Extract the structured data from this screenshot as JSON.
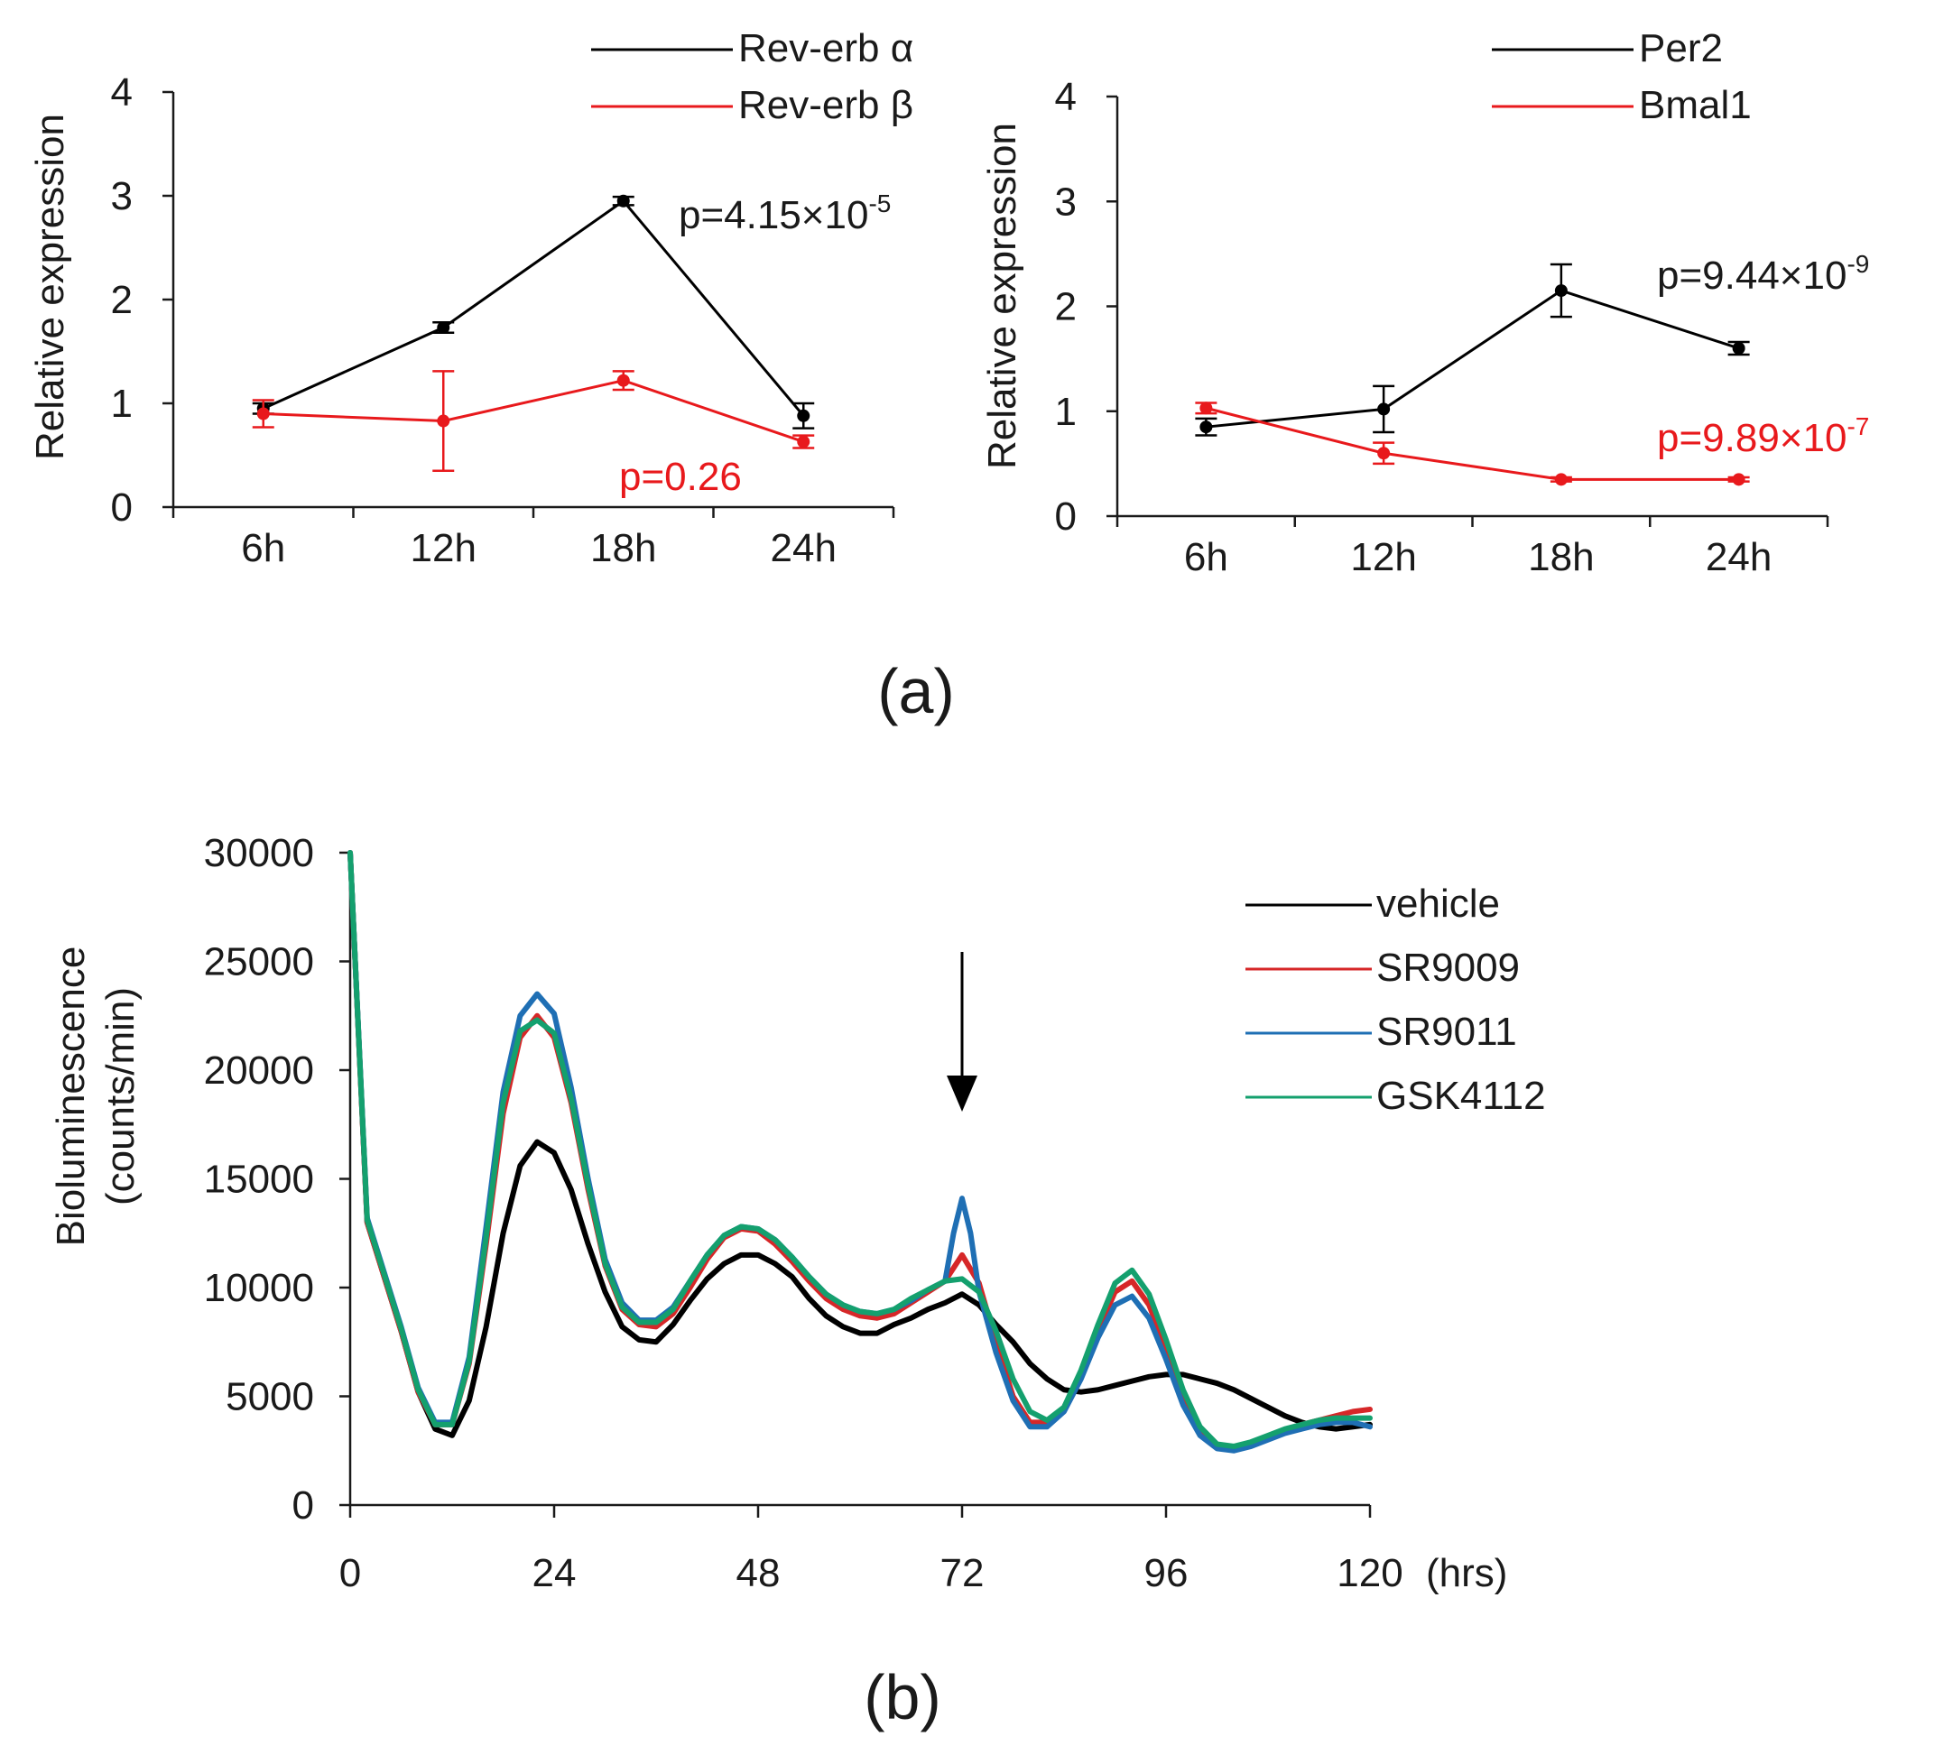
{
  "chart_data": [
    {
      "type": "line",
      "panel": "a-left",
      "title": "",
      "xlabel": "",
      "ylabel": "Relative expression",
      "categories": [
        "6h",
        "12h",
        "18h",
        "24h"
      ],
      "ylim": [
        0,
        4
      ],
      "yticks": [
        "0",
        "1",
        "2",
        "3",
        "4"
      ],
      "series": [
        {
          "name": "Rev-erb α",
          "color": "#000000",
          "values": [
            0.95,
            1.73,
            2.95,
            0.88
          ],
          "errors": [
            0.05,
            0.05,
            0.04,
            0.12
          ]
        },
        {
          "name": "Rev-erb β",
          "color": "#e8191c",
          "values": [
            0.9,
            0.83,
            1.22,
            0.63
          ],
          "errors": [
            0.13,
            0.48,
            0.09,
            0.06
          ]
        }
      ],
      "annotations": [
        {
          "text": "p=4.15×10-5",
          "base": "p=4.15×10",
          "sup": "-5",
          "color": "#000000"
        },
        {
          "text": "p=0.26",
          "color": "#e8191c"
        }
      ]
    },
    {
      "type": "line",
      "panel": "a-right",
      "title": "",
      "xlabel": "",
      "ylabel": "Relative expression",
      "categories": [
        "6h",
        "12h",
        "18h",
        "24h"
      ],
      "ylim": [
        0,
        4
      ],
      "yticks": [
        "0",
        "1",
        "2",
        "3",
        "4"
      ],
      "series": [
        {
          "name": "Per2",
          "color": "#000000",
          "values": [
            0.85,
            1.02,
            2.15,
            1.6
          ],
          "errors": [
            0.08,
            0.22,
            0.25,
            0.06
          ]
        },
        {
          "name": "Bmal1",
          "color": "#e8191c",
          "values": [
            1.03,
            0.6,
            0.35,
            0.35
          ],
          "errors": [
            0.05,
            0.1,
            0.02,
            0.02
          ]
        }
      ],
      "annotations": [
        {
          "text": "p=9.44×10-9",
          "base": "p=9.44×10",
          "sup": "-9",
          "color": "#000000"
        },
        {
          "text": "p=9.89×10-7",
          "base": "p=9.89×10",
          "sup": "-7",
          "color": "#e8191c"
        }
      ]
    },
    {
      "type": "line",
      "panel": "b",
      "title": "",
      "xlabel": "(hrs)",
      "ylabel": [
        "Bioluminescence",
        "(counts/min)"
      ],
      "xlim": [
        0,
        120
      ],
      "xticks": [
        "0",
        "24",
        "48",
        "72",
        "96",
        "120"
      ],
      "ylim": [
        0,
        30000
      ],
      "yticks": [
        "0",
        "5000",
        "10000",
        "15000",
        "20000",
        "25000",
        "30000"
      ],
      "arrow_at_x": 72,
      "series": [
        {
          "name": "vehicle",
          "color": "#000000",
          "x": [
            0,
            2,
            4,
            6,
            8,
            10,
            12,
            14,
            16,
            18,
            20,
            22,
            24,
            26,
            28,
            30,
            32,
            34,
            36,
            38,
            40,
            42,
            44,
            46,
            48,
            50,
            52,
            54,
            56,
            58,
            60,
            62,
            64,
            66,
            68,
            70,
            72,
            74,
            76,
            78,
            80,
            82,
            84,
            86,
            88,
            90,
            92,
            94,
            96,
            98,
            100,
            102,
            104,
            106,
            108,
            110,
            112,
            114,
            116,
            118,
            120
          ],
          "y": [
            30000,
            13000,
            10500,
            8000,
            5200,
            3500,
            3200,
            4800,
            8200,
            12500,
            15600,
            16700,
            16200,
            14500,
            12000,
            9800,
            8200,
            7600,
            7500,
            8300,
            9400,
            10400,
            11100,
            11500,
            11500,
            11100,
            10500,
            9500,
            8700,
            8200,
            7900,
            7900,
            8300,
            8600,
            9000,
            9300,
            9700,
            9200,
            8300,
            7500,
            6500,
            5800,
            5300,
            5200,
            5300,
            5500,
            5700,
            5900,
            6000,
            6000,
            5800,
            5600,
            5300,
            4900,
            4500,
            4100,
            3800,
            3600,
            3500,
            3600,
            3700
          ]
        },
        {
          "name": "SR9009",
          "color": "#d62728",
          "x": [
            0,
            2,
            4,
            6,
            8,
            10,
            12,
            14,
            16,
            18,
            20,
            22,
            24,
            26,
            28,
            30,
            32,
            34,
            36,
            38,
            40,
            42,
            44,
            46,
            48,
            50,
            52,
            54,
            56,
            58,
            60,
            62,
            64,
            66,
            68,
            70,
            72,
            74,
            76,
            78,
            80,
            82,
            84,
            86,
            88,
            90,
            92,
            94,
            96,
            98,
            100,
            102,
            104,
            106,
            108,
            110,
            112,
            114,
            116,
            118,
            120
          ],
          "y": [
            30000,
            13000,
            10500,
            8000,
            5200,
            3700,
            3700,
            6500,
            12000,
            18000,
            21500,
            22500,
            21500,
            18500,
            14500,
            11000,
            9000,
            8300,
            8200,
            8800,
            10000,
            11300,
            12300,
            12700,
            12600,
            12000,
            11200,
            10300,
            9500,
            9000,
            8700,
            8600,
            8800,
            9300,
            9800,
            10300,
            11500,
            10200,
            7500,
            5000,
            3800,
            3800,
            4500,
            6000,
            8000,
            9800,
            10300,
            9200,
            7200,
            5000,
            3400,
            2700,
            2600,
            2800,
            3100,
            3400,
            3700,
            3900,
            4100,
            4300,
            4400
          ]
        },
        {
          "name": "SR9011",
          "color": "#1f6fb4",
          "x": [
            0,
            2,
            4,
            6,
            8,
            10,
            12,
            14,
            16,
            18,
            20,
            22,
            24,
            26,
            28,
            30,
            32,
            34,
            36,
            38,
            40,
            42,
            44,
            46,
            48,
            50,
            52,
            54,
            56,
            58,
            60,
            62,
            64,
            66,
            68,
            70,
            71,
            72,
            73,
            74,
            76,
            78,
            80,
            82,
            84,
            86,
            88,
            90,
            92,
            94,
            96,
            98,
            100,
            102,
            104,
            106,
            108,
            110,
            112,
            114,
            116,
            118,
            120
          ],
          "y": [
            30000,
            13200,
            10700,
            8200,
            5400,
            3800,
            3800,
            6800,
            12800,
            19000,
            22500,
            23500,
            22600,
            19200,
            15000,
            11300,
            9300,
            8500,
            8500,
            9100,
            10300,
            11500,
            12400,
            12800,
            12700,
            12200,
            11400,
            10500,
            9700,
            9200,
            8900,
            8800,
            9000,
            9400,
            9900,
            10300,
            12500,
            14100,
            12500,
            9800,
            7000,
            4800,
            3600,
            3600,
            4300,
            5800,
            7700,
            9200,
            9600,
            8600,
            6700,
            4600,
            3200,
            2600,
            2500,
            2700,
            3000,
            3300,
            3500,
            3700,
            3800,
            3800,
            3600
          ]
        },
        {
          "name": "GSK4112",
          "color": "#14a06e",
          "x": [
            0,
            2,
            4,
            6,
            8,
            10,
            12,
            14,
            16,
            18,
            20,
            22,
            24,
            26,
            28,
            30,
            32,
            34,
            36,
            38,
            40,
            42,
            44,
            46,
            48,
            50,
            52,
            54,
            56,
            58,
            60,
            62,
            64,
            66,
            68,
            70,
            72,
            74,
            76,
            78,
            80,
            82,
            84,
            86,
            88,
            90,
            92,
            94,
            96,
            98,
            100,
            102,
            104,
            106,
            108,
            110,
            112,
            114,
            116,
            118,
            120
          ],
          "y": [
            30000,
            13100,
            10600,
            8100,
            5300,
            3700,
            3700,
            6600,
            12300,
            18500,
            21800,
            22300,
            21700,
            18700,
            14700,
            11100,
            9100,
            8400,
            8400,
            9000,
            10300,
            11500,
            12400,
            12800,
            12700,
            12200,
            11400,
            10500,
            9700,
            9200,
            8900,
            8800,
            9000,
            9500,
            9900,
            10300,
            10400,
            9800,
            8000,
            5800,
            4300,
            3900,
            4500,
            6200,
            8300,
            10200,
            10800,
            9700,
            7600,
            5300,
            3600,
            2800,
            2700,
            2900,
            3200,
            3500,
            3700,
            3900,
            4000,
            4000,
            4000
          ]
        }
      ]
    }
  ],
  "figure": {
    "panel_a_label": "(a)",
    "panel_b_label": "(b)"
  }
}
